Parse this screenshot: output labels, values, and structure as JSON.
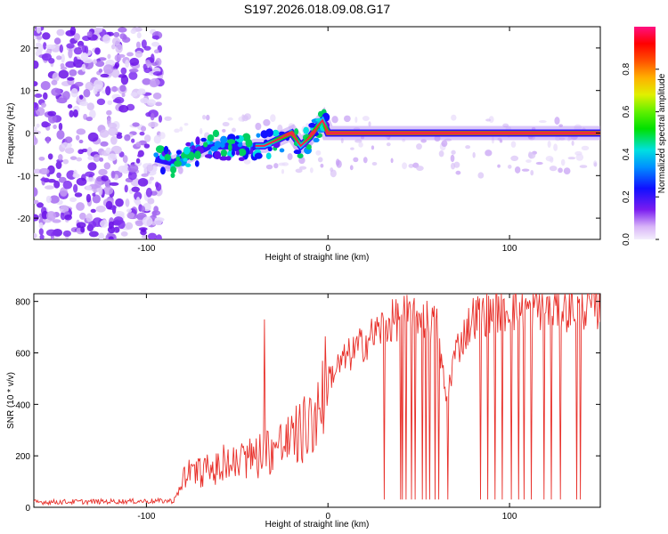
{
  "title": "S197.2026.018.09.08.G17",
  "colors": {
    "snr_line": "#e8302a",
    "axis": "#000000",
    "background": "#ffffff"
  },
  "chart_data": [
    {
      "type": "heatmap",
      "name": "spectrogram",
      "xlabel": "Height of straight line (km)",
      "ylabel": "Frequency (Hz)",
      "xlim": [
        -162,
        150
      ],
      "ylim": [
        -25,
        25
      ],
      "xticks": [
        -100,
        0,
        100
      ],
      "yticks": [
        -20,
        -10,
        0,
        10,
        20
      ],
      "ridge": {
        "x": [
          -95,
          -85,
          -75,
          -65,
          -55,
          -45,
          -40,
          -35,
          -30,
          -25,
          -20,
          -15,
          -10,
          -5,
          -3,
          0,
          5,
          150
        ],
        "freq_hz": [
          -6,
          -7,
          -5,
          -3,
          -3,
          -4,
          -3,
          -3,
          -2,
          -1,
          0,
          -3,
          -1,
          2,
          3,
          0,
          0,
          0
        ]
      },
      "noise_region_x": [
        -162,
        -92
      ],
      "colorbar": {
        "label": "Normalized spectral amplitude",
        "range": [
          0.0,
          1.0
        ],
        "ticks": [
          0.0,
          0.2,
          0.4,
          0.6,
          0.8
        ],
        "tick_labels": [
          "0.0",
          "0.2",
          "0.4",
          "0.6",
          "0.8"
        ]
      }
    },
    {
      "type": "line",
      "name": "snr",
      "xlabel": "Height of straight line (km)",
      "ylabel": "SNR (10 * v/v)",
      "xlim": [
        -162,
        150
      ],
      "ylim": [
        0,
        830
      ],
      "xticks": [
        -100,
        0,
        100
      ],
      "yticks": [
        0,
        200,
        400,
        600,
        800
      ],
      "series": [
        {
          "name": "SNR",
          "envelope_x": [
            -162,
            -85,
            -80,
            -70,
            -60,
            -50,
            -40,
            -30,
            -20,
            -10,
            -5,
            0,
            10,
            20,
            30,
            40,
            50,
            60,
            65,
            70,
            80,
            90,
            100,
            110,
            120,
            130,
            140,
            150
          ],
          "envelope_y": [
            20,
            25,
            110,
            140,
            150,
            170,
            200,
            230,
            260,
            320,
            400,
            500,
            580,
            640,
            700,
            740,
            750,
            700,
            420,
            600,
            740,
            760,
            770,
            770,
            780,
            770,
            780,
            780
          ],
          "dropout_x": [
            31,
            40,
            41,
            43,
            46,
            48,
            52,
            54,
            56,
            59,
            61,
            66,
            84,
            88,
            92,
            96,
            101,
            105,
            108,
            112,
            119,
            123,
            128,
            137,
            139
          ]
        }
      ]
    }
  ]
}
